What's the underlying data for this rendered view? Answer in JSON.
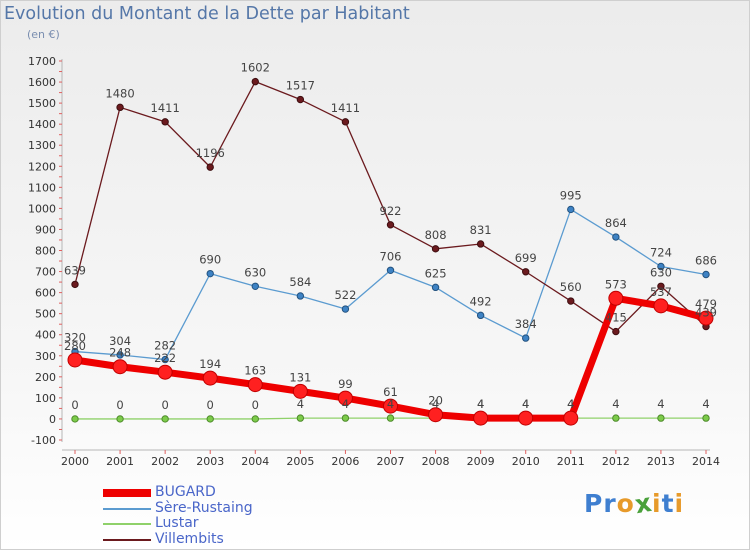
{
  "header": {
    "title": "Evolution du Montant de la Dette par Habitant",
    "subtitle": "(en €)"
  },
  "logo": {
    "letters": [
      "P",
      "r",
      "o",
      "x",
      "i",
      "t",
      "i"
    ],
    "colors": [
      "#3f7fd0",
      "#3f7fd0",
      "#e79a2a",
      "#4aa13b",
      "#e79a2a",
      "#3f7fd0",
      "#e79a2a"
    ]
  },
  "chart_data": {
    "type": "line",
    "title": "Evolution du Montant de la Dette par Habitant",
    "subtitle": "(en €)",
    "x": [
      "2000",
      "2001",
      "2002",
      "2003",
      "2004",
      "2005",
      "2006",
      "2007",
      "2008",
      "2009",
      "2010",
      "2011",
      "2012",
      "2013",
      "2014"
    ],
    "ylim": [
      -100,
      1700
    ],
    "yticks": [
      -100,
      0,
      100,
      200,
      300,
      400,
      500,
      600,
      700,
      800,
      900,
      1000,
      1100,
      1200,
      1300,
      1400,
      1500,
      1600,
      1700
    ],
    "grid": false,
    "legend_position": "bottom-left",
    "series": [
      {
        "name": "Villembits",
        "color": "#6b1a1e",
        "values": [
          639,
          1480,
          1411,
          1196,
          1602,
          1517,
          1411,
          922,
          808,
          831,
          699,
          560,
          415,
          630,
          439
        ]
      },
      {
        "name": "Sère-Rustaing",
        "color": "#5b9bd0",
        "values": [
          320,
          304,
          282,
          690,
          630,
          584,
          522,
          706,
          625,
          492,
          384,
          995,
          864,
          724,
          686
        ]
      },
      {
        "name": "Lustar",
        "color": "#8fd16a",
        "values": [
          0,
          0,
          0,
          0,
          0,
          4,
          4,
          4,
          4,
          4,
          4,
          4,
          4,
          4,
          4
        ]
      },
      {
        "name": "BUGARD",
        "color": "#ee0000",
        "values": [
          280,
          248,
          222,
          194,
          163,
          131,
          99,
          61,
          20,
          4,
          4,
          4,
          573,
          537,
          479
        ]
      }
    ],
    "legend": [
      "BUGARD",
      "Sère-Rustaing",
      "Lustar",
      "Villembits"
    ]
  }
}
